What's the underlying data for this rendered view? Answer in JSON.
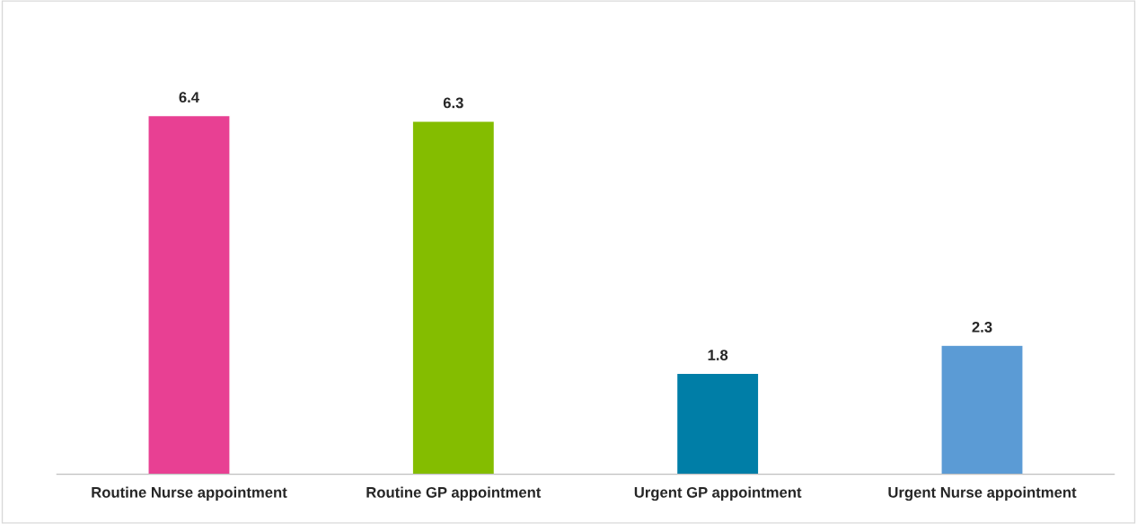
{
  "chart_data": {
    "type": "bar",
    "categories": [
      "Routine Nurse appointment",
      "Routine GP appointment",
      "Urgent GP appointment",
      "Urgent Nurse appointment"
    ],
    "values": [
      6.4,
      6.3,
      1.8,
      2.3
    ],
    "colors": [
      "#e84093",
      "#84bd00",
      "#007ea7",
      "#5b9bd5"
    ],
    "data_labels": true,
    "grid": false,
    "legend": false
  }
}
